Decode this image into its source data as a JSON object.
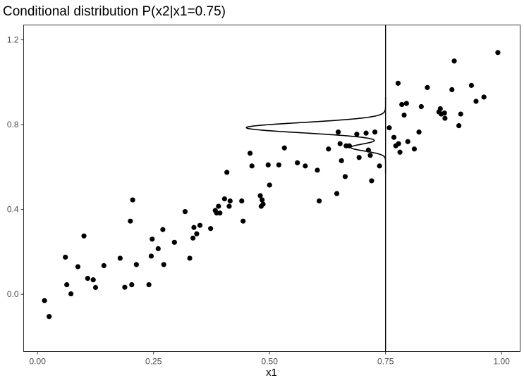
{
  "chart_data": {
    "type": "scatter",
    "title": "Conditional distribution P(x2|x1=0.75)",
    "xlabel": "x1",
    "ylabel": "",
    "xlim": [
      -0.03,
      1.04
    ],
    "ylim": [
      -0.27,
      1.27
    ],
    "x_ticks": [
      0.0,
      0.25,
      0.5,
      0.75,
      1.0
    ],
    "x_tick_labels": [
      "0.00",
      "0.25",
      "0.50",
      "0.75",
      "1.00"
    ],
    "y_ticks": [
      0.0,
      0.4,
      0.8,
      1.2
    ],
    "y_tick_labels": [
      "0.0",
      "0.4",
      "0.8",
      "1.2"
    ],
    "grid": false,
    "legend": "none",
    "vline_x": 0.75,
    "density_curve": {
      "baseline_x": 0.75,
      "components": [
        {
          "mean": 0.6925,
          "sd": 0.017,
          "weight": 0.2
        },
        {
          "mean": 0.7857,
          "sd": 0.024,
          "weight": 0.8
        }
      ],
      "peak_height_x": 0.3,
      "range_y": [
        0.57,
        0.93
      ]
    },
    "points": [
      {
        "x": 0.015,
        "y": -0.03
      },
      {
        "x": 0.025,
        "y": -0.105
      },
      {
        "x": 0.06,
        "y": 0.175
      },
      {
        "x": 0.063,
        "y": 0.045
      },
      {
        "x": 0.072,
        "y": 0.002
      },
      {
        "x": 0.087,
        "y": 0.13
      },
      {
        "x": 0.1,
        "y": 0.275
      },
      {
        "x": 0.108,
        "y": 0.075
      },
      {
        "x": 0.12,
        "y": 0.068
      },
      {
        "x": 0.125,
        "y": 0.032
      },
      {
        "x": 0.143,
        "y": 0.135
      },
      {
        "x": 0.178,
        "y": 0.17
      },
      {
        "x": 0.188,
        "y": 0.033
      },
      {
        "x": 0.2,
        "y": 0.345
      },
      {
        "x": 0.203,
        "y": 0.045
      },
      {
        "x": 0.205,
        "y": 0.445
      },
      {
        "x": 0.213,
        "y": 0.14
      },
      {
        "x": 0.24,
        "y": 0.045
      },
      {
        "x": 0.245,
        "y": 0.18
      },
      {
        "x": 0.247,
        "y": 0.26
      },
      {
        "x": 0.26,
        "y": 0.215
      },
      {
        "x": 0.27,
        "y": 0.305
      },
      {
        "x": 0.272,
        "y": 0.14
      },
      {
        "x": 0.295,
        "y": 0.245
      },
      {
        "x": 0.318,
        "y": 0.39
      },
      {
        "x": 0.328,
        "y": 0.17
      },
      {
        "x": 0.335,
        "y": 0.265
      },
      {
        "x": 0.337,
        "y": 0.315
      },
      {
        "x": 0.343,
        "y": 0.285
      },
      {
        "x": 0.35,
        "y": 0.325
      },
      {
        "x": 0.373,
        "y": 0.31
      },
      {
        "x": 0.383,
        "y": 0.395
      },
      {
        "x": 0.386,
        "y": 0.383
      },
      {
        "x": 0.39,
        "y": 0.415
      },
      {
        "x": 0.393,
        "y": 0.383
      },
      {
        "x": 0.403,
        "y": 0.45
      },
      {
        "x": 0.408,
        "y": 0.575
      },
      {
        "x": 0.413,
        "y": 0.415
      },
      {
        "x": 0.415,
        "y": 0.44
      },
      {
        "x": 0.44,
        "y": 0.44
      },
      {
        "x": 0.443,
        "y": 0.345
      },
      {
        "x": 0.458,
        "y": 0.665
      },
      {
        "x": 0.462,
        "y": 0.605
      },
      {
        "x": 0.48,
        "y": 0.465
      },
      {
        "x": 0.482,
        "y": 0.415
      },
      {
        "x": 0.484,
        "y": 0.445
      },
      {
        "x": 0.486,
        "y": 0.425
      },
      {
        "x": 0.497,
        "y": 0.61
      },
      {
        "x": 0.5,
        "y": 0.515
      },
      {
        "x": 0.52,
        "y": 0.61
      },
      {
        "x": 0.532,
        "y": 0.69
      },
      {
        "x": 0.56,
        "y": 0.62
      },
      {
        "x": 0.577,
        "y": 0.605
      },
      {
        "x": 0.603,
        "y": 0.585
      },
      {
        "x": 0.607,
        "y": 0.44
      },
      {
        "x": 0.627,
        "y": 0.685
      },
      {
        "x": 0.645,
        "y": 0.475
      },
      {
        "x": 0.648,
        "y": 0.765
      },
      {
        "x": 0.652,
        "y": 0.71
      },
      {
        "x": 0.655,
        "y": 0.63
      },
      {
        "x": 0.663,
        "y": 0.555
      },
      {
        "x": 0.665,
        "y": 0.7
      },
      {
        "x": 0.672,
        "y": 0.7
      },
      {
        "x": 0.688,
        "y": 0.755
      },
      {
        "x": 0.693,
        "y": 0.645
      },
      {
        "x": 0.708,
        "y": 0.76
      },
      {
        "x": 0.713,
        "y": 0.68
      },
      {
        "x": 0.717,
        "y": 0.655
      },
      {
        "x": 0.72,
        "y": 0.535
      },
      {
        "x": 0.727,
        "y": 0.765
      },
      {
        "x": 0.737,
        "y": 0.605
      },
      {
        "x": 0.758,
        "y": 0.785
      },
      {
        "x": 0.768,
        "y": 0.74
      },
      {
        "x": 0.772,
        "y": 0.7
      },
      {
        "x": 0.777,
        "y": 0.995
      },
      {
        "x": 0.778,
        "y": 0.71
      },
      {
        "x": 0.781,
        "y": 0.67
      },
      {
        "x": 0.785,
        "y": 0.895
      },
      {
        "x": 0.79,
        "y": 0.845
      },
      {
        "x": 0.795,
        "y": 0.9
      },
      {
        "x": 0.798,
        "y": 0.72
      },
      {
        "x": 0.812,
        "y": 0.685
      },
      {
        "x": 0.822,
        "y": 0.765
      },
      {
        "x": 0.827,
        "y": 0.885
      },
      {
        "x": 0.84,
        "y": 0.975
      },
      {
        "x": 0.865,
        "y": 0.86
      },
      {
        "x": 0.868,
        "y": 0.875
      },
      {
        "x": 0.87,
        "y": 0.85
      },
      {
        "x": 0.877,
        "y": 0.855
      },
      {
        "x": 0.878,
        "y": 0.83
      },
      {
        "x": 0.893,
        "y": 0.965
      },
      {
        "x": 0.898,
        "y": 1.1
      },
      {
        "x": 0.908,
        "y": 0.795
      },
      {
        "x": 0.912,
        "y": 0.85
      },
      {
        "x": 0.935,
        "y": 0.985
      },
      {
        "x": 0.945,
        "y": 0.91
      },
      {
        "x": 0.962,
        "y": 0.93
      },
      {
        "x": 0.992,
        "y": 1.14
      }
    ]
  }
}
